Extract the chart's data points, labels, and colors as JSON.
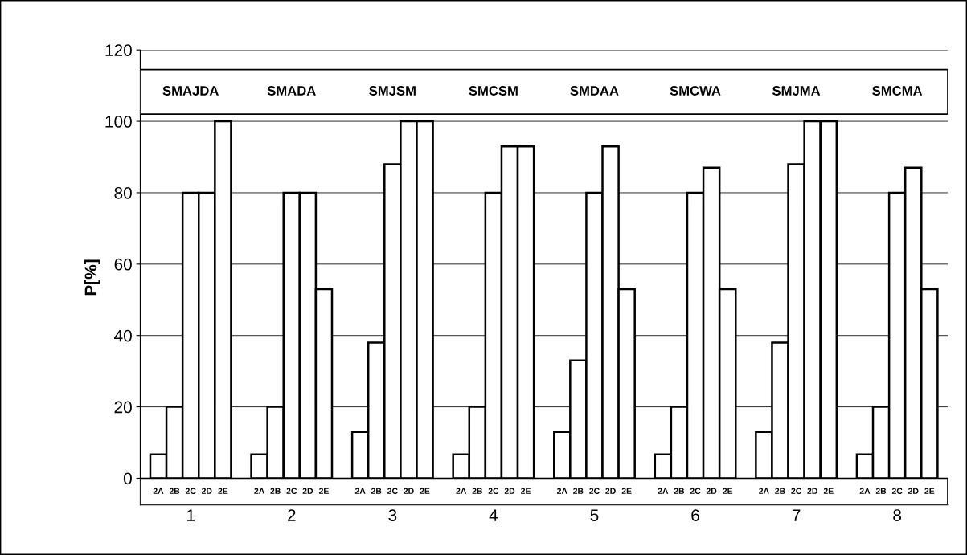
{
  "chart_data": {
    "type": "bar",
    "ylabel": "P[%]",
    "categories": [
      "1",
      "2",
      "3",
      "4",
      "5",
      "6",
      "7",
      "8"
    ],
    "series": [
      {
        "name": "2A",
        "color": "#ffffff",
        "values": [
          6.7,
          6.7,
          13,
          6.7,
          13,
          6.7,
          13,
          6.7
        ]
      },
      {
        "name": "2B",
        "color": "#ffffff",
        "values": [
          20,
          20,
          38,
          20,
          33,
          20,
          38,
          20
        ]
      },
      {
        "name": "2C",
        "color": "#ffffff",
        "values": [
          80,
          80,
          88,
          80,
          80,
          80,
          88,
          80
        ]
      },
      {
        "name": "2D",
        "color": "#ffffff",
        "values": [
          80,
          80,
          100,
          93,
          93,
          87,
          100,
          87
        ]
      },
      {
        "name": "2E",
        "color": "#ffffff",
        "values": [
          100,
          53,
          100,
          93,
          53,
          53,
          100,
          53
        ]
      }
    ],
    "annotations": [
      "SMAJDA",
      "SMADA",
      "SMJSM",
      "SMCSM",
      "SMDAA",
      "SMCWA",
      "SMJMA",
      "SMCMA"
    ],
    "ylim": [
      -7.5,
      120
    ],
    "yticks": [
      0,
      20,
      40,
      60,
      80,
      100,
      120
    ],
    "grid": "y"
  }
}
